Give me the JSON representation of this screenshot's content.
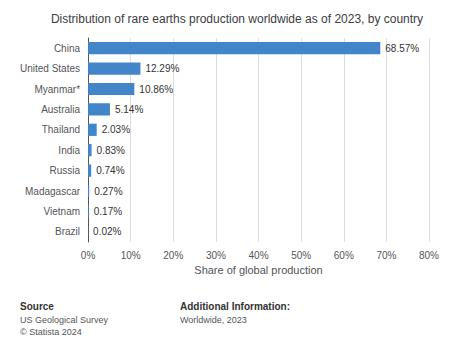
{
  "chart_data": {
    "type": "bar",
    "orientation": "horizontal",
    "title": "Distribution of rare earths production worldwide as of 2023, by country",
    "categories": [
      "Brazil",
      "Vietnam",
      "Madagascar",
      "Russia",
      "India",
      "Thailand",
      "Australia",
      "Myanmar*",
      "United States",
      "China"
    ],
    "values": [
      0.02,
      0.17,
      0.27,
      0.74,
      0.83,
      2.03,
      5.14,
      10.86,
      12.29,
      68.57
    ],
    "value_labels": [
      "0.02%",
      "0.17%",
      "0.27%",
      "0.74%",
      "0.83%",
      "2.03%",
      "5.14%",
      "10.86%",
      "12.29%",
      "68.57%"
    ],
    "data_labels": true,
    "color": "#4285c8",
    "xlabel": "Share of global production",
    "xlim": [
      0,
      80
    ],
    "xticks": [
      {
        "value": 0,
        "label": "0%"
      },
      {
        "value": 10,
        "label": "10%"
      },
      {
        "value": 20,
        "label": "20%"
      },
      {
        "value": 30,
        "label": "30%"
      },
      {
        "value": 40,
        "label": "40%"
      },
      {
        "value": 50,
        "label": "50%"
      },
      {
        "value": 60,
        "label": "60%"
      },
      {
        "value": 70,
        "label": "70%"
      },
      {
        "value": 80,
        "label": "80%"
      }
    ],
    "grid": true,
    "annotations": [
      "Source",
      "US Geological Survey\n© Statista 2024",
      "Additional Information:",
      "Worldwide, 2023"
    ]
  }
}
